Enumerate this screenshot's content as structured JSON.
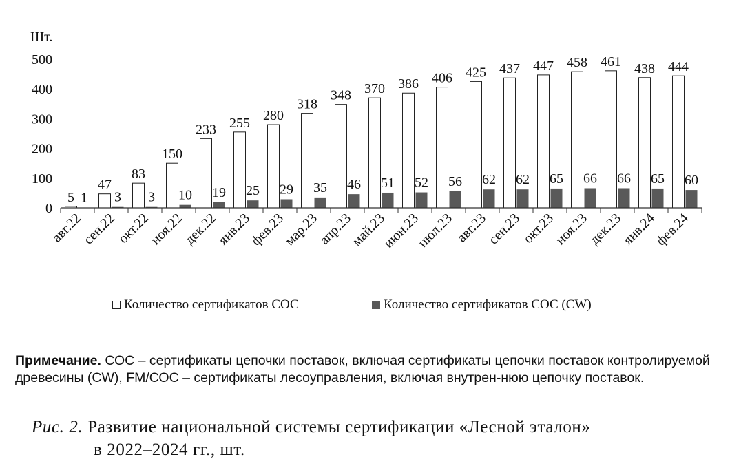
{
  "chart_data": {
    "type": "bar",
    "ylabel": "Шт.",
    "ylim": [
      0,
      500
    ],
    "yticks": [
      0,
      100,
      200,
      300,
      400,
      500
    ],
    "grid": false,
    "legend_position": "bottom",
    "categories": [
      "авг.22",
      "сен.22",
      "окт.22",
      "ноя.22",
      "дек.22",
      "янв.23",
      "фев.23",
      "мар.23",
      "апр.23",
      "май.23",
      "июн.23",
      "июл.23",
      "авг.23",
      "сен.23",
      "окт.23",
      "ноя.23",
      "дек.23",
      "янв.24",
      "фев.24"
    ],
    "series": [
      {
        "name": "Количество сертификатов СОС",
        "color": "#ffffff",
        "values": [
          5,
          47,
          83,
          150,
          233,
          255,
          280,
          318,
          348,
          370,
          386,
          406,
          425,
          437,
          447,
          458,
          461,
          438,
          444
        ]
      },
      {
        "name": "Количество сертификатов СОС (CW)",
        "color": "#595959",
        "values": [
          1,
          3,
          3,
          10,
          19,
          25,
          29,
          35,
          46,
          51,
          52,
          56,
          62,
          62,
          65,
          66,
          66,
          65,
          60
        ]
      }
    ]
  },
  "note": {
    "label": "Примечание.",
    "text": "СОС – сертификаты цепочки поставок, включая сертификаты цепочки поставок контролируемой древесины (CW), FM/СОС – сертификаты лесоуправления, включая внутрен-нюю цепочку поставок."
  },
  "caption": {
    "prefix": "Рис. 2.",
    "line1": "Развитие национальной системы сертификации «Лесной эталон»",
    "line2": "в 2022–2024 гг., шт."
  }
}
